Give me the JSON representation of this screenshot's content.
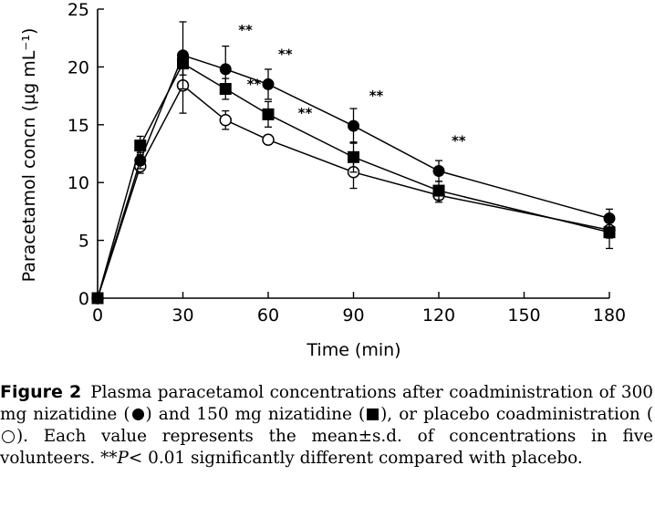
{
  "chart_data": {
    "type": "line",
    "xlabel": "Time (min)",
    "ylabel": "Paracetamol concn (µg mL⁻¹)",
    "xlim": [
      0,
      180
    ],
    "ylim": [
      0,
      25
    ],
    "xticks": [
      0,
      30,
      60,
      90,
      120,
      150,
      180
    ],
    "yticks": [
      0,
      5,
      10,
      15,
      20,
      25
    ],
    "grid": false,
    "legend": "none (symbols explained in caption)",
    "series": [
      {
        "marker": "filled-circle",
        "color": "#000000",
        "x": [
          0,
          15,
          30,
          45,
          60,
          90,
          120,
          180
        ],
        "y": [
          0,
          11.9,
          21.0,
          19.8,
          18.5,
          14.9,
          11.0,
          6.9
        ],
        "err": [
          0,
          0.7,
          2.9,
          2.0,
          1.3,
          1.5,
          0.9,
          0.8
        ]
      },
      {
        "marker": "filled-square",
        "color": "#000000",
        "x": [
          0,
          15,
          30,
          45,
          60,
          90,
          120,
          180
        ],
        "y": [
          0,
          13.2,
          20.3,
          18.1,
          15.9,
          12.2,
          9.3,
          5.7
        ],
        "err": [
          0,
          0.8,
          1.0,
          0.9,
          1.1,
          1.3,
          0.8,
          1.4
        ]
      },
      {
        "marker": "open-circle",
        "color": "#000000",
        "x": [
          0,
          15,
          30,
          45,
          60,
          90,
          120,
          180
        ],
        "y": [
          0,
          11.4,
          18.4,
          15.4,
          13.7,
          10.9,
          8.9,
          5.9
        ],
        "err": [
          0,
          0.6,
          2.4,
          0.8,
          0.4,
          1.4,
          0.6,
          0.7
        ]
      }
    ],
    "annotations": [
      {
        "text": "**",
        "x": 52,
        "y": 22.8
      },
      {
        "text": "**",
        "x": 66,
        "y": 20.7
      },
      {
        "text": "**",
        "x": 55,
        "y": 18.1
      },
      {
        "text": "**",
        "x": 73,
        "y": 15.6
      },
      {
        "text": "**",
        "x": 98,
        "y": 17.1
      },
      {
        "text": "**",
        "x": 127,
        "y": 13.2
      }
    ]
  },
  "caption": {
    "label": "Figure 2",
    "text_1": "Plasma paracetamol concentrations after coadministration of 300 mg nizatidine (",
    "text_2": ") and 150 mg nizatidine (",
    "text_3": "), or placebo coadministration (",
    "text_4": "). Each value represents the mean±s.d. of concentrations in five volunteers. **",
    "p_symbol": "P",
    "text_5": "< 0.01 significantly different compared with placebo."
  }
}
